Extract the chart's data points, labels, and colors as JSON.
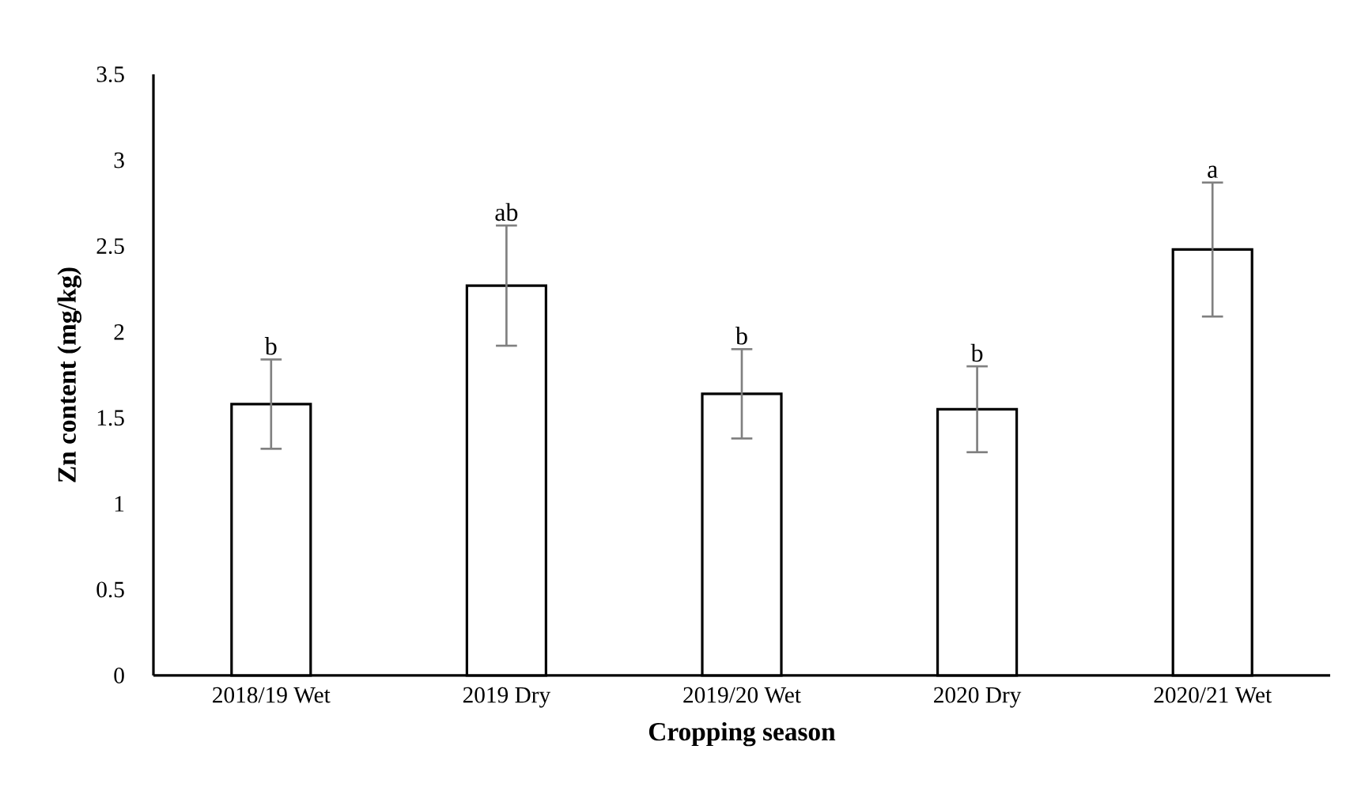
{
  "chart_data": {
    "type": "bar",
    "xlabel": "Cropping season",
    "ylabel": "Zn content (mg/kg)",
    "categories": [
      "2018/19 Wet",
      "2019 Dry",
      "2019/20 Wet",
      "2020 Dry",
      "2020/21 Wet"
    ],
    "values": [
      1.58,
      2.27,
      1.64,
      1.55,
      2.48
    ],
    "errors": [
      0.26,
      0.35,
      0.26,
      0.25,
      0.39
    ],
    "color": "#ffffff",
    "ylim": [
      0,
      3.5
    ],
    "yticks": [
      0,
      0.5,
      1,
      1.5,
      2,
      2.5,
      3,
      3.5
    ],
    "annotations": [
      {
        "text": "b",
        "x": "2018/19 Wet",
        "y": 1.84
      },
      {
        "text": "ab",
        "x": "2019 Dry",
        "y": 2.62
      },
      {
        "text": "b",
        "x": "2019/20 Wet",
        "y": 1.9
      },
      {
        "text": "b",
        "x": "2020 Dry",
        "y": 1.8
      },
      {
        "text": "a",
        "x": "2020/21 Wet",
        "y": 2.87
      }
    ]
  }
}
